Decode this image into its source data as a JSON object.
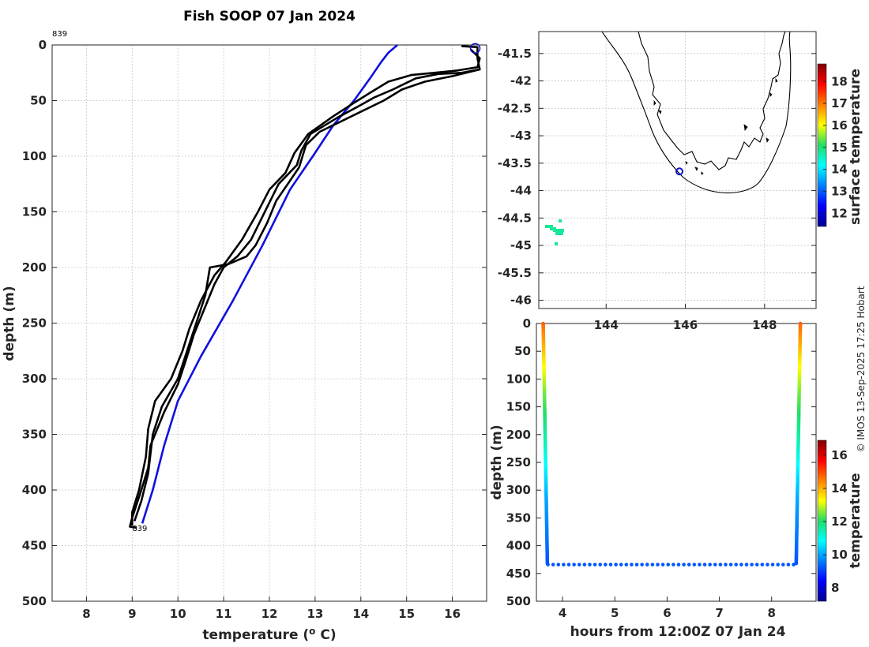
{
  "title": "Fish SOOP 07 Jan 2024",
  "credit": "© IMOS 13-Sep-2025 17:25 Hobart",
  "chart_data": [
    {
      "id": "profile",
      "type": "line",
      "xlabel": "temperature (o C)",
      "xlabel_main": "temperature (",
      "xlabel_sup": "o",
      "xlabel_end": " C)",
      "ylabel": "depth (m)",
      "xlim": [
        7.25,
        16.75
      ],
      "ylim": [
        500,
        0
      ],
      "xticks": [
        "8",
        "9",
        "10",
        "11",
        "12",
        "13",
        "14",
        "15",
        "16"
      ],
      "yticks": [
        "0",
        "50",
        "100",
        "150",
        "200",
        "250",
        "300",
        "350",
        "400",
        "450",
        "500"
      ],
      "top_label": "839",
      "bottom_label": "839",
      "marker": {
        "t": 16.5,
        "d": 3,
        "color": "#1010c0"
      },
      "series": [
        {
          "color": "#1010e0",
          "points": [
            [
              14.8,
              0
            ],
            [
              14.6,
              7
            ],
            [
              14.45,
              15
            ],
            [
              14.2,
              30
            ],
            [
              13.85,
              50
            ],
            [
              13.4,
              72
            ],
            [
              12.95,
              100
            ],
            [
              12.45,
              130
            ],
            [
              11.85,
              180
            ],
            [
              11.2,
              230
            ],
            [
              10.5,
              280
            ],
            [
              10.0,
              320
            ],
            [
              9.7,
              360
            ],
            [
              9.45,
              400
            ],
            [
              9.22,
              430
            ]
          ]
        },
        {
          "color": "#000000",
          "points": [
            [
              16.2,
              1
            ],
            [
              16.55,
              2
            ],
            [
              16.55,
              12
            ],
            [
              16.6,
              22
            ],
            [
              16.2,
              25
            ],
            [
              15.7,
              26
            ],
            [
              15.2,
              30
            ],
            [
              14.7,
              40
            ],
            [
              14.3,
              47
            ],
            [
              13.95,
              55
            ],
            [
              13.5,
              65
            ],
            [
              12.9,
              80
            ],
            [
              12.7,
              95
            ],
            [
              12.6,
              108
            ],
            [
              12.2,
              125
            ],
            [
              11.9,
              150
            ],
            [
              11.6,
              175
            ],
            [
              11.3,
              190
            ],
            [
              11.0,
              200
            ],
            [
              10.8,
              215
            ],
            [
              10.55,
              240
            ],
            [
              10.35,
              260
            ],
            [
              10.2,
              280
            ],
            [
              10.0,
              305
            ],
            [
              9.7,
              330
            ],
            [
              9.4,
              360
            ],
            [
              9.35,
              380
            ],
            [
              9.2,
              400
            ],
            [
              9.0,
              425
            ],
            [
              8.95,
              433
            ],
            [
              9.1,
              434
            ]
          ]
        },
        {
          "color": "#000000",
          "points": [
            [
              16.4,
              4
            ],
            [
              16.6,
              12
            ],
            [
              16.55,
              20
            ],
            [
              16.1,
              23
            ],
            [
              15.6,
              25
            ],
            [
              15.1,
              27
            ],
            [
              14.6,
              33
            ],
            [
              14.2,
              43
            ],
            [
              13.85,
              52
            ],
            [
              13.4,
              64
            ],
            [
              12.85,
              80
            ],
            [
              12.55,
              97
            ],
            [
              12.35,
              115
            ],
            [
              12.0,
              130
            ],
            [
              11.75,
              150
            ],
            [
              11.4,
              175
            ],
            [
              11.05,
              195
            ],
            [
              10.8,
              207
            ],
            [
              10.5,
              230
            ],
            [
              10.25,
              255
            ],
            [
              10.1,
              275
            ],
            [
              9.85,
              300
            ],
            [
              9.5,
              320
            ],
            [
              9.35,
              345
            ],
            [
              9.3,
              370
            ],
            [
              9.15,
              400
            ],
            [
              9.0,
              420
            ],
            [
              9.0,
              432
            ]
          ]
        },
        {
          "color": "#000000",
          "points": [
            [
              16.6,
              22
            ],
            [
              16.0,
              28
            ],
            [
              15.4,
              33
            ],
            [
              14.9,
              40
            ],
            [
              14.5,
              50
            ],
            [
              14.0,
              60
            ],
            [
              13.6,
              68
            ],
            [
              13.1,
              78
            ],
            [
              12.8,
              90
            ],
            [
              12.65,
              110
            ],
            [
              12.4,
              125
            ],
            [
              12.15,
              140
            ],
            [
              11.95,
              160
            ],
            [
              11.7,
              180
            ],
            [
              11.5,
              190
            ],
            [
              11.1,
              197
            ],
            [
              10.7,
              200
            ],
            [
              10.6,
              225
            ],
            [
              10.4,
              250
            ],
            [
              10.2,
              275
            ],
            [
              10.0,
              300
            ],
            [
              9.65,
              325
            ],
            [
              9.45,
              350
            ],
            [
              9.35,
              385
            ],
            [
              9.2,
              410
            ],
            [
              9.05,
              428
            ]
          ]
        }
      ]
    },
    {
      "id": "map",
      "type": "map",
      "xlim": [
        142.3,
        149.3
      ],
      "ylim": [
        -46.15,
        -41.1
      ],
      "xticks": [
        "144",
        "146",
        "148"
      ],
      "yticks": [
        "-41.5",
        "-42",
        "-42.5",
        "-43",
        "-43.5",
        "-44",
        "-44.5",
        "-45",
        "-45.5",
        "-46"
      ],
      "colorbar_label": "surface temperature",
      "colorbar_ticks": [
        "12",
        "13",
        "14",
        "15",
        "16",
        "17",
        "18"
      ],
      "colorbar_range": [
        11.4,
        18.8
      ],
      "marker": {
        "lon": 145.85,
        "lat": -43.65
      },
      "patch_value": 14.8
    },
    {
      "id": "section",
      "type": "scatter",
      "xlabel": "hours from 12:00Z 07 Jan 24",
      "ylabel": "depth (m)",
      "xlim": [
        3.5,
        8.85
      ],
      "ylim": [
        500,
        0
      ],
      "xticks": [
        "4",
        "5",
        "6",
        "7",
        "8"
      ],
      "yticks": [
        "0",
        "50",
        "100",
        "150",
        "200",
        "250",
        "300",
        "350",
        "400",
        "450",
        "500"
      ],
      "colorbar_label": "temperature",
      "colorbar_ticks": [
        "8",
        "10",
        "12",
        "14",
        "16"
      ],
      "colorbar_range": [
        7.2,
        16.9
      ],
      "cast_times": [
        3.63,
        8.55
      ],
      "cast_max_depth": 432,
      "bottom_depth": 434,
      "bottom_range": [
        3.72,
        8.47
      ]
    }
  ]
}
